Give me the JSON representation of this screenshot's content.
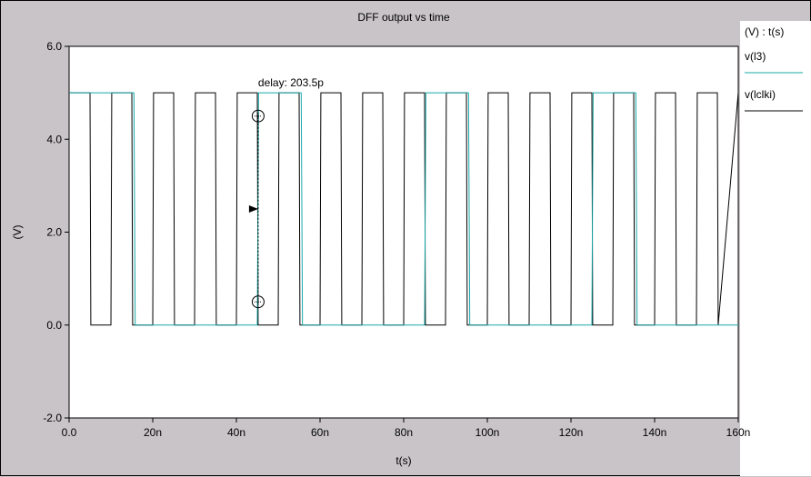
{
  "chart_data": {
    "type": "line",
    "title": "DFF output vs time",
    "xlabel": "t(s)",
    "ylabel": "(V)",
    "xlim": [
      0,
      160
    ],
    "ylim": [
      -2,
      6
    ],
    "x_unit": "ns",
    "x_ticks": [
      0,
      20,
      40,
      60,
      80,
      100,
      120,
      140,
      160
    ],
    "x_tick_labels": [
      "0.0",
      "20n",
      "40n",
      "60n",
      "80n",
      "100n",
      "120n",
      "140n",
      "160n"
    ],
    "y_ticks": [
      -2,
      0,
      2,
      4,
      6
    ],
    "y_tick_labels": [
      "-2.0",
      "0.0",
      "2.0",
      "4.0",
      "6.0"
    ],
    "legend_title": "(V) : t(s)",
    "legend_position": "right",
    "background": "#ffffff",
    "series": [
      {
        "name": "v(l3)",
        "color": "#1aa8a8",
        "x": [
          0,
          15.5,
          15.8,
          45,
          45.3,
          55.5,
          55.8,
          85,
          85.3,
          95.5,
          95.8,
          125,
          125.3,
          135.5,
          135.8,
          160
        ],
        "y": [
          5,
          5,
          0,
          0,
          5,
          5,
          0,
          0,
          5,
          5,
          0,
          0,
          5,
          5,
          0,
          0
        ]
      },
      {
        "name": "v(lclki)",
        "color": "#000000",
        "x": [
          0,
          5,
          5.2,
          10,
          10.2,
          15,
          15.2,
          20,
          20.2,
          25,
          25.2,
          30,
          30.2,
          35,
          35.2,
          40,
          40.2,
          45,
          45.2,
          50,
          50.2,
          55,
          55.2,
          60,
          60.2,
          65,
          65.2,
          70,
          70.2,
          75,
          75.2,
          80,
          80.2,
          85,
          85.2,
          90,
          90.2,
          95,
          95.2,
          100,
          100.2,
          105,
          105.2,
          110,
          110.2,
          115,
          115.2,
          120,
          120.2,
          125,
          125.2,
          130,
          130.2,
          135,
          135.2,
          140,
          140.2,
          145,
          145.2,
          150,
          150.2,
          155,
          155.2,
          160
        ],
        "y": [
          5,
          5,
          0,
          0,
          5,
          5,
          0,
          0,
          5,
          5,
          0,
          0,
          5,
          5,
          0,
          0,
          5,
          5,
          0,
          0,
          5,
          5,
          0,
          0,
          5,
          5,
          0,
          0,
          5,
          5,
          0,
          0,
          5,
          5,
          0,
          0,
          5,
          5,
          0,
          0,
          5,
          5,
          0,
          0,
          5,
          5,
          0,
          0,
          5,
          5,
          0,
          0,
          5,
          5,
          0,
          0,
          5,
          5,
          0,
          0,
          5,
          5,
          0,
          5
        ]
      }
    ],
    "annotation": {
      "text": "delay: 203.5p",
      "x": 45.2,
      "marker_y_upper": 4.5,
      "marker_y_lower": 0.5,
      "marker_y_mid": 2.5
    }
  }
}
